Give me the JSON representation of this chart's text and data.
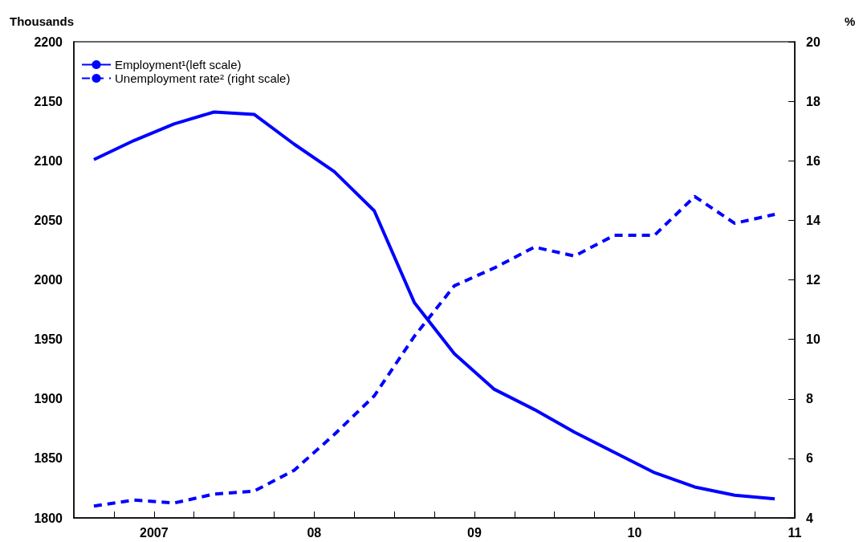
{
  "chart_data": {
    "type": "line",
    "ylabel": "Thousands",
    "y2label": "%",
    "x": [
      2006.625,
      2006.875,
      2007.125,
      2007.375,
      2007.625,
      2007.875,
      2008.125,
      2008.375,
      2008.625,
      2008.875,
      2009.125,
      2009.375,
      2009.625,
      2009.875,
      2010.125,
      2010.375,
      2010.625,
      2010.875
    ],
    "xlim": [
      2006.5,
      2011
    ],
    "xticks": [
      {
        "value": 2006.75,
        "label": null
      },
      {
        "value": 2007,
        "label": "2007"
      },
      {
        "value": 2007.25,
        "label": null
      },
      {
        "value": 2007.5,
        "label": null
      },
      {
        "value": 2007.75,
        "label": null
      },
      {
        "value": 2008,
        "label": "08"
      },
      {
        "value": 2008.25,
        "label": null
      },
      {
        "value": 2008.5,
        "label": null
      },
      {
        "value": 2008.75,
        "label": null
      },
      {
        "value": 2009,
        "label": "09"
      },
      {
        "value": 2009.25,
        "label": null
      },
      {
        "value": 2009.5,
        "label": null
      },
      {
        "value": 2009.75,
        "label": null
      },
      {
        "value": 2010,
        "label": "10"
      },
      {
        "value": 2010.25,
        "label": null
      },
      {
        "value": 2010.5,
        "label": null
      },
      {
        "value": 2010.75,
        "label": null
      },
      {
        "value": 2011,
        "label": "11"
      }
    ],
    "ylim": [
      1800,
      2200
    ],
    "yticks": [
      1800,
      1850,
      1900,
      1950,
      2000,
      2050,
      2100,
      2150,
      2200
    ],
    "y2lim": [
      4,
      20
    ],
    "y2ticks": [
      4,
      6,
      8,
      10,
      12,
      14,
      16,
      18,
      20
    ],
    "series": [
      {
        "name": "Employment¹(left scale)",
        "color": "#0000ff",
        "line_style": "solid",
        "values": [
          2101,
          2117,
          2131,
          2141,
          2139,
          2114,
          2091,
          2058,
          1981,
          1938,
          1908,
          1891,
          1872,
          1855,
          1838,
          1826,
          1819,
          1816
        ]
      },
      {
        "name": "Unemployment rate² (right scale)",
        "color": "#0000ff",
        "line_style": "dashed",
        "axis": "y2",
        "values": [
          4.4,
          4.6,
          4.5,
          4.8,
          4.9,
          5.6,
          6.8,
          8.1,
          10.1,
          11.8,
          12.4,
          13.1,
          12.8,
          13.5,
          13.5,
          14.8,
          13.9,
          14.2
        ]
      }
    ],
    "marker": "none",
    "grid": false,
    "legend": "top left"
  }
}
